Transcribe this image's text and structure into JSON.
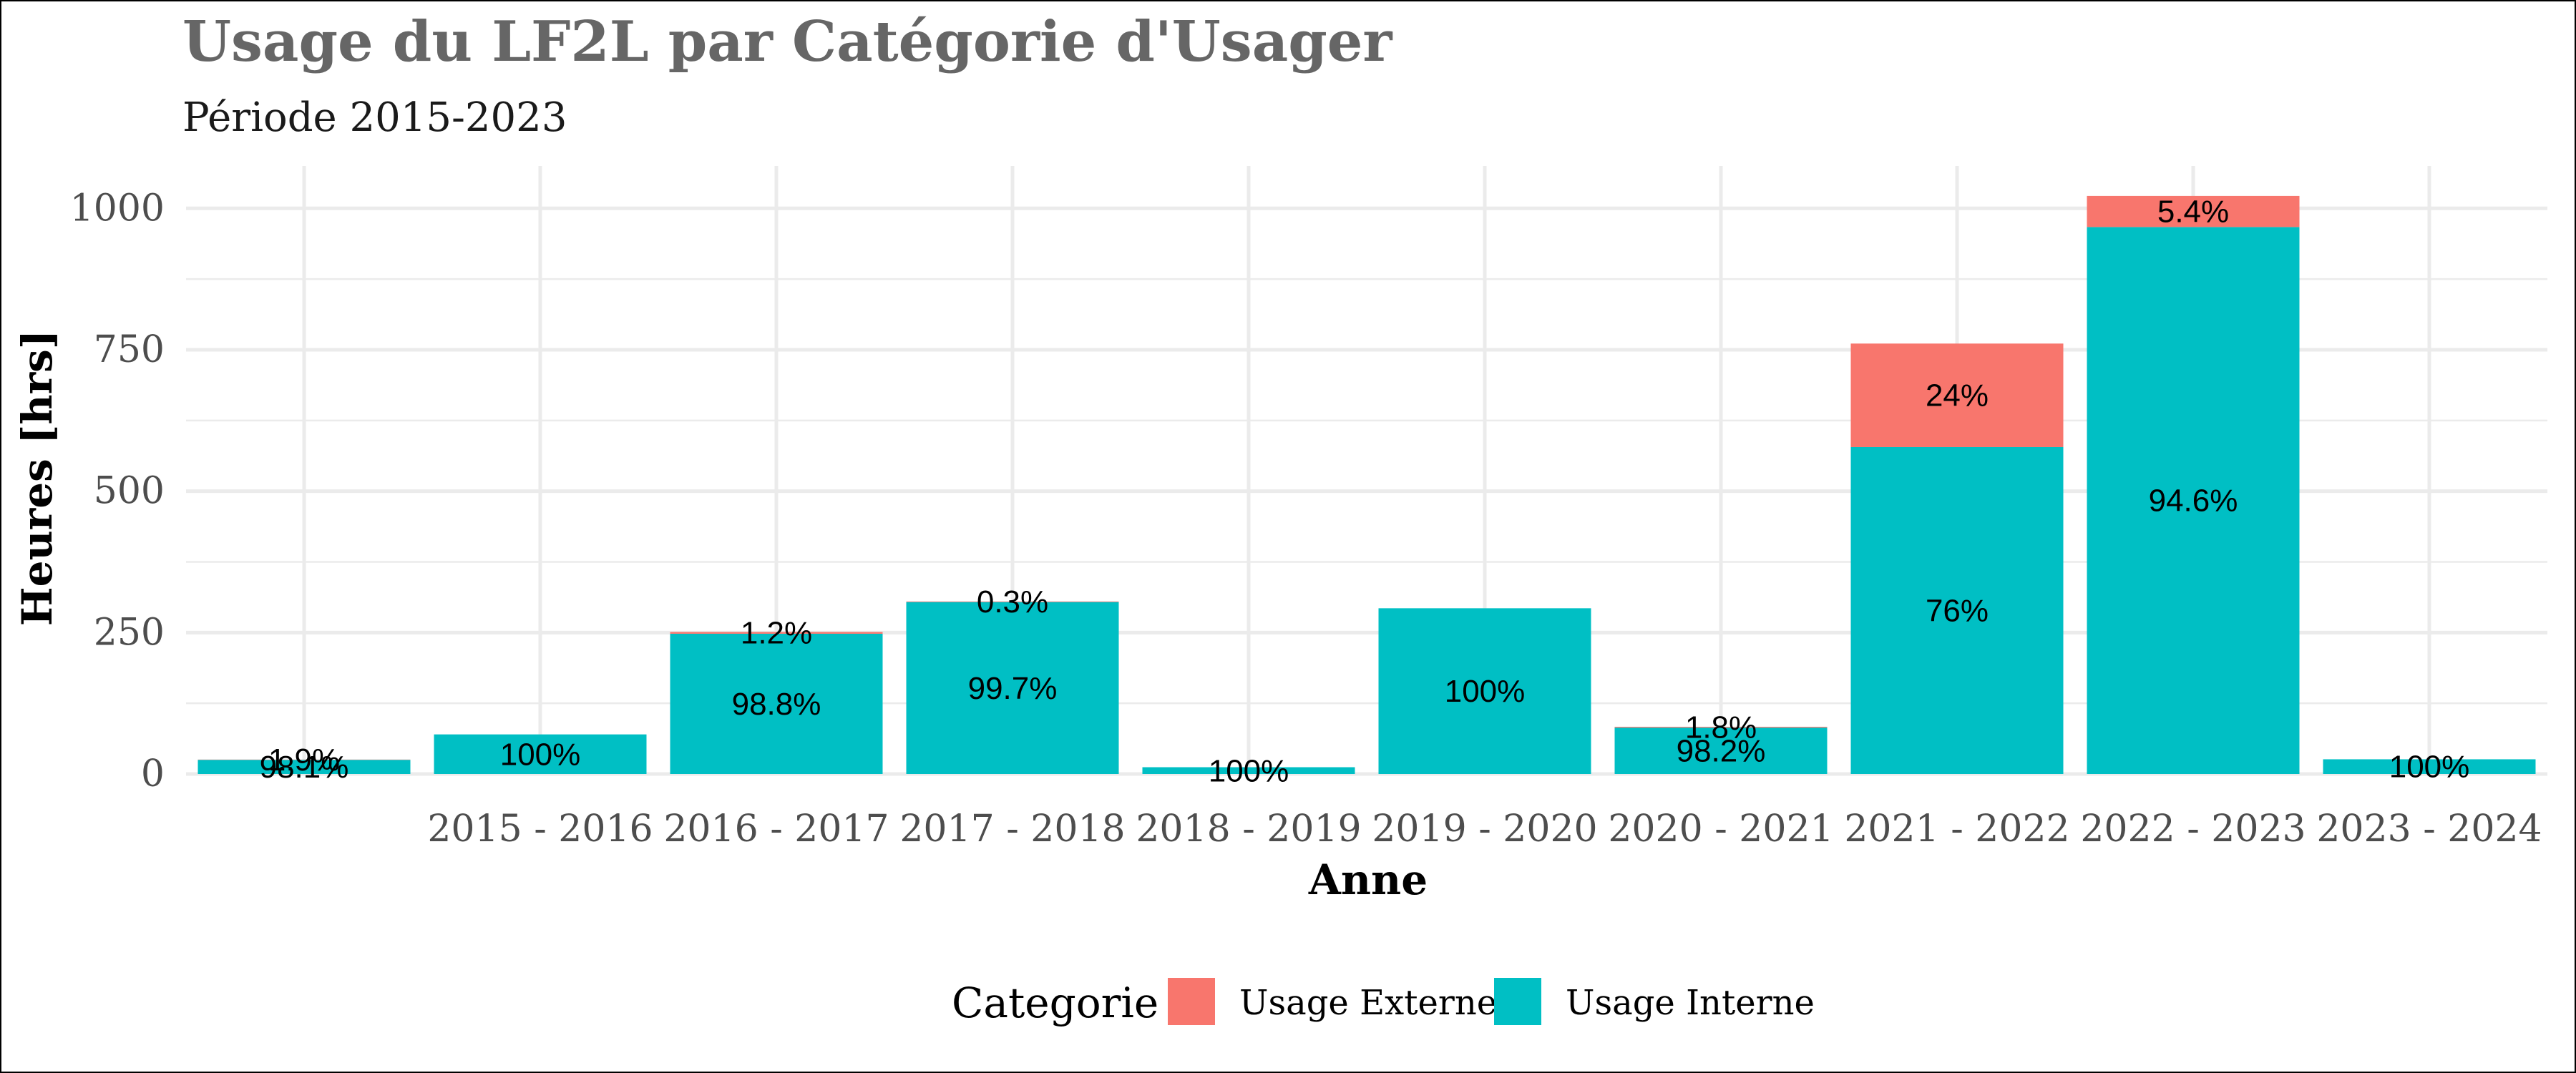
{
  "chart_data": {
    "type": "bar",
    "stacked": true,
    "title": "Usage du LF2L par Catégorie d'Usager",
    "subtitle": "Période 2015-2023",
    "xlabel": "Anne",
    "ylabel": "Heures [hrs]",
    "ylim": [
      0,
      1075
    ],
    "yticks": [
      0,
      250,
      500,
      750,
      1000
    ],
    "grid": true,
    "categories": [
      "",
      "2015 - 2016",
      "2016 - 2017",
      "2017 - 2018",
      "2018 - 2019",
      "2019 - 2020",
      "2020 - 2021",
      "2021 - 2022",
      "2022 - 2023",
      "2023 - 2024"
    ],
    "series": [
      {
        "name": "Usage Interne",
        "color": "#00BFC4",
        "values": [
          25,
          70,
          248,
          304,
          12,
          293,
          82,
          578,
          967,
          26
        ],
        "labels": [
          "98.1%",
          "100%",
          "98.8%",
          "99.7%",
          "100%",
          "100%",
          "98.2%",
          "76%",
          "94.6%",
          "100%"
        ]
      },
      {
        "name": "Usage Externe",
        "color": "#F8766D",
        "values": [
          0.5,
          0,
          3,
          1,
          0,
          0,
          1.5,
          183,
          55,
          0
        ],
        "labels": [
          "1.9%",
          "",
          "1.2%",
          "0.3%",
          "",
          "",
          "1.8%",
          "24%",
          "5.4%",
          ""
        ]
      }
    ],
    "legend": {
      "title": "Categorie",
      "position": "bottom",
      "items": [
        "Usage Externe",
        "Usage Interne"
      ]
    }
  }
}
